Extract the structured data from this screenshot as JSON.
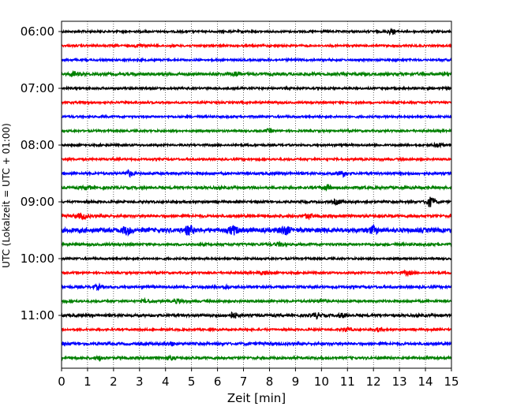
{
  "chart_data": {
    "type": "line",
    "subtype": "helicorder",
    "xlabel": "Zeit  [min]",
    "ylabel": "UTC (Lokalzeit = UTC + 01:00)",
    "xlim": [
      0,
      15
    ],
    "xticks": [
      0,
      1,
      2,
      3,
      4,
      5,
      6,
      7,
      8,
      9,
      10,
      11,
      12,
      13,
      14,
      15
    ],
    "yticks": [
      {
        "label": "06:00",
        "trace": 0
      },
      {
        "label": "07:00",
        "trace": 4
      },
      {
        "label": "08:00",
        "trace": 8
      },
      {
        "label": "09:00",
        "trace": 12
      },
      {
        "label": "10:00",
        "trace": 16
      },
      {
        "label": "11:00",
        "trace": 20
      }
    ],
    "trace_interval_min": 15,
    "grid": {
      "vertical": true,
      "style": "dotted"
    },
    "colors": [
      "#000000",
      "#ff0000",
      "#0000ff",
      "#008000"
    ],
    "traces": [
      {
        "start": "06:00",
        "color": "#000000",
        "amp": 1.0,
        "events": [
          {
            "t": 12.7,
            "a": 2.2
          }
        ]
      },
      {
        "start": "06:15",
        "color": "#ff0000",
        "amp": 1.0,
        "events": [
          {
            "t": 3.0,
            "a": 1.4
          }
        ]
      },
      {
        "start": "06:30",
        "color": "#0000ff",
        "amp": 1.0,
        "events": []
      },
      {
        "start": "06:45",
        "color": "#008000",
        "amp": 1.4,
        "events": [
          {
            "t": 0.5,
            "a": 2.0
          },
          {
            "t": 6.7,
            "a": 2.0
          }
        ]
      },
      {
        "start": "07:00",
        "color": "#000000",
        "amp": 1.0,
        "events": []
      },
      {
        "start": "07:15",
        "color": "#ff0000",
        "amp": 1.0,
        "events": []
      },
      {
        "start": "07:30",
        "color": "#0000ff",
        "amp": 1.0,
        "events": []
      },
      {
        "start": "07:45",
        "color": "#008000",
        "amp": 1.0,
        "events": [
          {
            "t": 8.0,
            "a": 1.4
          }
        ]
      },
      {
        "start": "08:00",
        "color": "#000000",
        "amp": 1.0,
        "events": [
          {
            "t": 14.5,
            "a": 1.8
          }
        ]
      },
      {
        "start": "08:15",
        "color": "#ff0000",
        "amp": 1.0,
        "events": []
      },
      {
        "start": "08:30",
        "color": "#0000ff",
        "amp": 1.2,
        "events": [
          {
            "t": 2.6,
            "a": 2.6
          },
          {
            "t": 10.8,
            "a": 2.6
          }
        ]
      },
      {
        "start": "08:45",
        "color": "#008000",
        "amp": 1.3,
        "events": [
          {
            "t": 1.0,
            "a": 1.6
          },
          {
            "t": 10.2,
            "a": 2.0
          }
        ]
      },
      {
        "start": "09:00",
        "color": "#000000",
        "amp": 1.1,
        "events": [
          {
            "t": 10.6,
            "a": 2.2
          },
          {
            "t": 14.2,
            "a": 4.6
          }
        ]
      },
      {
        "start": "09:15",
        "color": "#ff0000",
        "amp": 1.3,
        "events": [
          {
            "t": 0.8,
            "a": 2.6
          },
          {
            "t": 9.5,
            "a": 2.0
          }
        ]
      },
      {
        "start": "09:30",
        "color": "#0000ff",
        "amp": 2.2,
        "events": [
          {
            "t": 2.5,
            "a": 3.4
          },
          {
            "t": 4.9,
            "a": 4.0
          },
          {
            "t": 6.6,
            "a": 3.6
          },
          {
            "t": 8.6,
            "a": 3.6
          },
          {
            "t": 12.0,
            "a": 3.0
          }
        ]
      },
      {
        "start": "09:45",
        "color": "#008000",
        "amp": 1.2,
        "events": [
          {
            "t": 8.4,
            "a": 1.6
          }
        ]
      },
      {
        "start": "10:00",
        "color": "#000000",
        "amp": 1.0,
        "events": []
      },
      {
        "start": "10:15",
        "color": "#ff0000",
        "amp": 1.0,
        "events": [
          {
            "t": 7.8,
            "a": 1.8
          },
          {
            "t": 13.3,
            "a": 1.8
          }
        ]
      },
      {
        "start": "10:30",
        "color": "#0000ff",
        "amp": 1.2,
        "events": [
          {
            "t": 1.4,
            "a": 1.8
          },
          {
            "t": 6.3,
            "a": 1.5
          }
        ]
      },
      {
        "start": "10:45",
        "color": "#008000",
        "amp": 1.1,
        "events": [
          {
            "t": 3.3,
            "a": 1.6
          },
          {
            "t": 4.5,
            "a": 1.8
          },
          {
            "t": 10.0,
            "a": 2.0
          }
        ]
      },
      {
        "start": "11:00",
        "color": "#000000",
        "amp": 1.3,
        "events": [
          {
            "t": 6.6,
            "a": 2.6
          },
          {
            "t": 9.8,
            "a": 2.4
          },
          {
            "t": 10.8,
            "a": 1.8
          }
        ]
      },
      {
        "start": "11:15",
        "color": "#ff0000",
        "amp": 1.0,
        "events": [
          {
            "t": 11.0,
            "a": 1.8
          },
          {
            "t": 12.2,
            "a": 1.6
          }
        ]
      },
      {
        "start": "11:30",
        "color": "#0000ff",
        "amp": 1.3,
        "events": [
          {
            "t": 4.2,
            "a": 1.6
          }
        ]
      },
      {
        "start": "11:45",
        "color": "#008000",
        "amp": 1.2,
        "events": [
          {
            "t": 1.5,
            "a": 1.4
          },
          {
            "t": 4.2,
            "a": 1.4
          }
        ]
      }
    ]
  }
}
